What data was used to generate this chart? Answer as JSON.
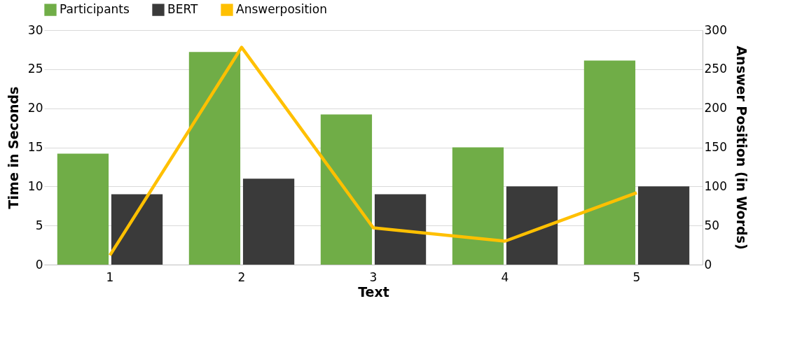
{
  "chart_data": {
    "type": "bar",
    "xlabel": "Text",
    "ylabel": "Time in Seconds",
    "y2label": "Answer Position (in Words)",
    "categories": [
      "1",
      "2",
      "3",
      "4",
      "5"
    ],
    "series": [
      {
        "name": "Participants",
        "color": "#70ad47",
        "values": [
          14.2,
          27.2,
          19.2,
          15.0,
          26.1
        ]
      },
      {
        "name": "BERT",
        "color": "#3a3a3a",
        "values": [
          9,
          11,
          9,
          10,
          10
        ]
      },
      {
        "name": "Answerposition",
        "type": "line",
        "axis": "y2",
        "color": "#ffc000",
        "values": [
          12,
          278,
          47,
          30,
          92
        ]
      }
    ],
    "ylim": [
      0,
      30
    ],
    "yticks": [
      0,
      5,
      10,
      15,
      20,
      25,
      30
    ],
    "y2lim": [
      0,
      300
    ],
    "y2ticks": [
      0,
      50,
      100,
      150,
      200,
      250,
      300
    ],
    "grid": "y",
    "legend": "top"
  }
}
